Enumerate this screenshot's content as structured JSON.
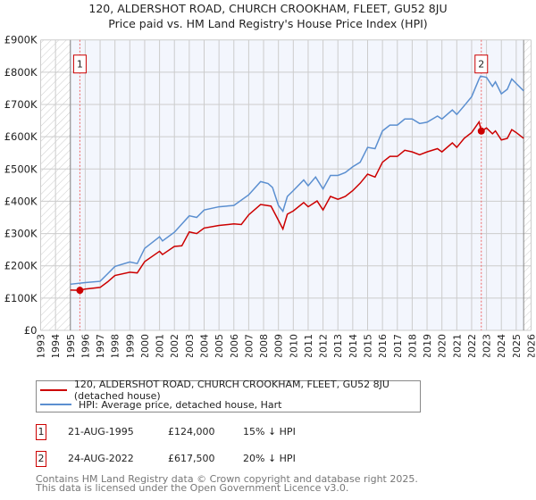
{
  "title_line1": "120, ALDERSHOT ROAD, CHURCH CROOKHAM, FLEET, GU52 8JU",
  "title_line2": "Price paid vs. HM Land Registry's House Price Index (HPI)",
  "chart_data": {
    "type": "line",
    "xlim": [
      1993,
      2026
    ],
    "ylim": [
      0,
      900000
    ],
    "grid": true,
    "y_ticks": [
      {
        "v": 0,
        "label": "£0"
      },
      {
        "v": 100000,
        "label": "£100K"
      },
      {
        "v": 200000,
        "label": "£200K"
      },
      {
        "v": 300000,
        "label": "£300K"
      },
      {
        "v": 400000,
        "label": "£400K"
      },
      {
        "v": 500000,
        "label": "£500K"
      },
      {
        "v": 600000,
        "label": "£600K"
      },
      {
        "v": 700000,
        "label": "£700K"
      },
      {
        "v": 800000,
        "label": "£800K"
      },
      {
        "v": 900000,
        "label": "£900K"
      }
    ],
    "x_ticks": [
      "1993",
      "1994",
      "1995",
      "1996",
      "1997",
      "1998",
      "1999",
      "2000",
      "2001",
      "2002",
      "2003",
      "2004",
      "2005",
      "2006",
      "2007",
      "2008",
      "2009",
      "2010",
      "2011",
      "2012",
      "2013",
      "2014",
      "2015",
      "2016",
      "2017",
      "2018",
      "2019",
      "2020",
      "2021",
      "2022",
      "2023",
      "2024",
      "2025",
      "2026"
    ],
    "data_range": [
      1995.0,
      2025.5
    ],
    "series": [
      {
        "name": "120, ALDERSHOT ROAD, CHURCH CROOKHAM, FLEET, GU52 8JU (detached house)",
        "color": "#cc0000",
        "points": [
          [
            1995,
            125000
          ],
          [
            1995.6,
            124000
          ],
          [
            1996,
            128000
          ],
          [
            1997,
            133000
          ],
          [
            1997.5,
            150000
          ],
          [
            1998,
            170000
          ],
          [
            1999,
            180000
          ],
          [
            1999.5,
            178000
          ],
          [
            2000,
            213000
          ],
          [
            2001,
            245000
          ],
          [
            2001.2,
            235000
          ],
          [
            2002,
            260000
          ],
          [
            2002.5,
            262000
          ],
          [
            2003,
            305000
          ],
          [
            2003.5,
            300000
          ],
          [
            2004,
            317000
          ],
          [
            2005,
            325000
          ],
          [
            2006,
            330000
          ],
          [
            2006.5,
            328000
          ],
          [
            2007,
            358000
          ],
          [
            2007.8,
            390000
          ],
          [
            2008.5,
            385000
          ],
          [
            2009,
            341000
          ],
          [
            2009.3,
            314000
          ],
          [
            2009.6,
            360000
          ],
          [
            2010,
            370000
          ],
          [
            2010.7,
            396000
          ],
          [
            2011,
            383000
          ],
          [
            2011.6,
            401000
          ],
          [
            2012,
            373000
          ],
          [
            2012.5,
            415000
          ],
          [
            2013,
            406000
          ],
          [
            2013.5,
            415000
          ],
          [
            2014,
            433000
          ],
          [
            2014.5,
            456000
          ],
          [
            2015,
            484000
          ],
          [
            2015.5,
            475000
          ],
          [
            2016,
            521000
          ],
          [
            2016.5,
            539000
          ],
          [
            2017,
            539000
          ],
          [
            2017.5,
            558000
          ],
          [
            2018,
            553000
          ],
          [
            2018.5,
            544000
          ],
          [
            2019,
            553000
          ],
          [
            2019.7,
            563000
          ],
          [
            2020,
            553000
          ],
          [
            2020.7,
            581000
          ],
          [
            2021,
            567000
          ],
          [
            2021.5,
            595000
          ],
          [
            2022,
            613000
          ],
          [
            2022.5,
            646000
          ],
          [
            2022.65,
            617500
          ],
          [
            2023,
            627000
          ],
          [
            2023.4,
            609000
          ],
          [
            2023.6,
            618000
          ],
          [
            2024,
            590000
          ],
          [
            2024.4,
            595000
          ],
          [
            2024.7,
            622000
          ],
          [
            2025,
            613000
          ],
          [
            2025.5,
            595000
          ]
        ]
      },
      {
        "name": "HPI: Average price, detached house, Hart",
        "color": "#5b8fd0",
        "points": [
          [
            1995,
            143000
          ],
          [
            1996,
            148000
          ],
          [
            1997,
            152000
          ],
          [
            1997.5,
            175000
          ],
          [
            1998,
            198000
          ],
          [
            1999,
            212000
          ],
          [
            1999.5,
            207000
          ],
          [
            2000,
            254000
          ],
          [
            2001,
            290000
          ],
          [
            2001.2,
            277000
          ],
          [
            2002,
            304000
          ],
          [
            2003,
            355000
          ],
          [
            2003.5,
            350000
          ],
          [
            2004,
            373000
          ],
          [
            2005,
            383000
          ],
          [
            2006,
            387000
          ],
          [
            2007,
            420000
          ],
          [
            2007.8,
            461000
          ],
          [
            2008.3,
            455000
          ],
          [
            2008.6,
            443000
          ],
          [
            2009,
            387000
          ],
          [
            2009.3,
            369000
          ],
          [
            2009.6,
            415000
          ],
          [
            2010,
            433000
          ],
          [
            2010.7,
            466000
          ],
          [
            2011,
            448000
          ],
          [
            2011.5,
            475000
          ],
          [
            2012,
            438000
          ],
          [
            2012.5,
            480000
          ],
          [
            2013,
            480000
          ],
          [
            2013.5,
            489000
          ],
          [
            2014,
            507000
          ],
          [
            2014.5,
            521000
          ],
          [
            2015,
            567000
          ],
          [
            2015.5,
            563000
          ],
          [
            2016,
            618000
          ],
          [
            2016.5,
            636000
          ],
          [
            2017,
            636000
          ],
          [
            2017.5,
            655000
          ],
          [
            2018,
            655000
          ],
          [
            2018.5,
            641000
          ],
          [
            2019,
            645000
          ],
          [
            2019.7,
            664000
          ],
          [
            2020,
            655000
          ],
          [
            2020.7,
            683000
          ],
          [
            2021,
            669000
          ],
          [
            2021.5,
            696000
          ],
          [
            2022,
            724000
          ],
          [
            2022.5,
            779000
          ],
          [
            2022.6,
            788000
          ],
          [
            2023,
            784000
          ],
          [
            2023.4,
            756000
          ],
          [
            2023.6,
            770000
          ],
          [
            2024,
            733000
          ],
          [
            2024.4,
            747000
          ],
          [
            2024.7,
            779000
          ],
          [
            2025,
            765000
          ],
          [
            2025.5,
            742000
          ]
        ]
      }
    ],
    "annotations": [
      {
        "label": "1",
        "x": 1995.64,
        "y": 124000
      },
      {
        "label": "2",
        "x": 2022.65,
        "y": 617500
      }
    ]
  },
  "legend": {
    "property": "120, ALDERSHOT ROAD, CHURCH CROOKHAM, FLEET, GU52 8JU (detached house)",
    "hpi": "HPI: Average price, detached house, Hart"
  },
  "sales": [
    {
      "num": "1",
      "date": "21-AUG-1995",
      "price": "£124,000",
      "hpi": "15% ↓ HPI"
    },
    {
      "num": "2",
      "date": "24-AUG-2022",
      "price": "£617,500",
      "hpi": "20% ↓ HPI"
    }
  ],
  "footer_line1": "Contains HM Land Registry data © Crown copyright and database right 2025.",
  "footer_line2": "This data is licensed under the Open Government Licence v3.0."
}
